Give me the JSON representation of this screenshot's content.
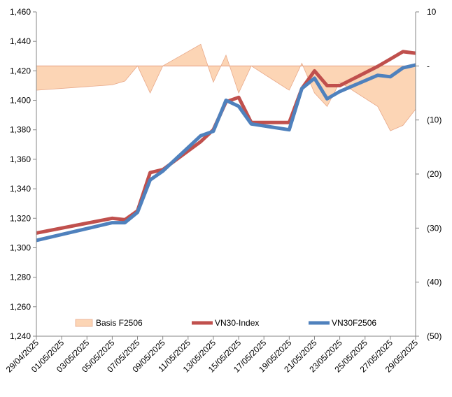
{
  "chart_data": {
    "type": "line",
    "x": [
      "29/04/2025",
      "05/05/2025",
      "06/05/2025",
      "07/05/2025",
      "08/05/2025",
      "09/05/2025",
      "12/05/2025",
      "13/05/2025",
      "14/05/2025",
      "15/05/2025",
      "16/05/2025",
      "19/05/2025",
      "20/05/2025",
      "21/05/2025",
      "22/05/2025",
      "23/05/2025",
      "26/05/2025",
      "27/05/2025",
      "28/05/2025",
      "29/05/2025"
    ],
    "x_tick_labels": [
      "29/04/2025",
      "01/05/2025",
      "03/05/2025",
      "05/05/2025",
      "07/05/2025",
      "09/05/2025",
      "11/05/2025",
      "13/05/2025",
      "15/05/2025",
      "17/05/2025",
      "19/05/2025",
      "21/05/2025",
      "23/05/2025",
      "25/05/2025",
      "27/05/2025",
      "29/05/2025"
    ],
    "y_left": {
      "min": 1240,
      "max": 1460,
      "step": 20,
      "tick_labels": [
        "1,240",
        "1,260",
        "1,280",
        "1,300",
        "1,320",
        "1,340",
        "1,360",
        "1,380",
        "1,400",
        "1,420",
        "1,440",
        "1,460"
      ]
    },
    "y_right": {
      "min": -50,
      "max": 10,
      "step": 10,
      "tick_labels": [
        "(50)",
        "(40)",
        "(30)",
        "(20)",
        "(10)",
        "-",
        "10"
      ]
    },
    "series": [
      {
        "name": "Basis F2506",
        "kind": "area",
        "axis": "right",
        "color": "#fcd5b5",
        "edge_color": "#e8a98a",
        "values": [
          -4.5,
          -3.5,
          -2.8,
          0,
          -5,
          0,
          4,
          -3,
          2,
          -5,
          0,
          -4.5,
          0.5,
          -5,
          -7.5,
          -3,
          -7.5,
          -12,
          -11,
          -8
        ]
      },
      {
        "name": "VN30-Index",
        "kind": "line",
        "axis": "left",
        "color": "#c0504d",
        "values": [
          1310,
          1320,
          1319,
          1325,
          1351,
          1353,
          1372,
          1380,
          1399,
          1402,
          1385,
          1385,
          1408,
          1420,
          1410,
          1410,
          1423,
          1428,
          1433,
          1432
        ]
      },
      {
        "name": "VN30F2506",
        "kind": "line",
        "axis": "left",
        "color": "#4f81bd",
        "values": [
          1305,
          1317,
          1317,
          1324,
          1346,
          1352,
          1376,
          1379,
          1400,
          1396,
          1384,
          1380,
          1408,
          1415,
          1401,
          1406,
          1417,
          1416,
          1422,
          1424
        ]
      }
    ],
    "legend_position": "bottom-inside",
    "grid": false
  }
}
